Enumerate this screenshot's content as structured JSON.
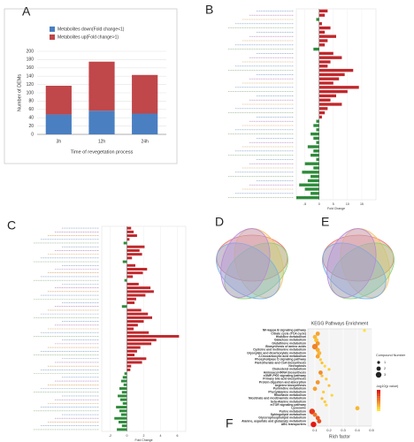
{
  "chart_data": [
    {
      "type": "stacked_bar",
      "panel": "A",
      "y_label": "Number of DEMs",
      "x_label": "Time of revegetation process",
      "categories": [
        "3h",
        "12h",
        "24h"
      ],
      "series": [
        {
          "name": "Metabolites down(Fold change<1)",
          "color": "#4a7fc1",
          "values": [
            48,
            57,
            50
          ]
        },
        {
          "name": "Metabolites up(Fold change>1)",
          "color": "#c0474a",
          "values": [
            69,
            118,
            93
          ]
        }
      ],
      "ylim": [
        0,
        200
      ],
      "yticks": [
        0,
        20,
        40,
        60,
        80,
        100,
        120,
        140,
        160,
        180,
        200
      ],
      "grid": true
    },
    {
      "type": "diverging_bar",
      "panel": "B",
      "x_label": "Fold Change",
      "color_up": "#c0282c",
      "color_down": "#2e8b3a",
      "categories": [
        null,
        null,
        null,
        null,
        null,
        null,
        null,
        null,
        null,
        null,
        null,
        null,
        null,
        null,
        null,
        null,
        null,
        null,
        null,
        null,
        null,
        null,
        null,
        null,
        null,
        null,
        null,
        null,
        null,
        null,
        null,
        null,
        null,
        null,
        null,
        null,
        null,
        null,
        null,
        null,
        null,
        null,
        null,
        null,
        null
      ],
      "values": [
        3,
        2,
        -1,
        1,
        4,
        2,
        6,
        3,
        2,
        -2,
        5,
        8,
        4,
        3,
        12,
        9,
        7,
        5,
        14,
        10,
        6,
        4,
        8,
        3,
        2,
        1,
        -1,
        -2,
        -1,
        -3,
        -2,
        -1,
        -4,
        -2,
        -3,
        -1,
        -5,
        -2,
        -6,
        -3,
        -4,
        -7,
        -5,
        -3,
        -8
      ],
      "xlim": [
        -8,
        20
      ],
      "xticks": [
        -5,
        0,
        5,
        10,
        15
      ]
    },
    {
      "type": "diverging_bar",
      "panel": "C",
      "x_label": "Fold Change",
      "color_up": "#c0282c",
      "color_down": "#2e8b3a",
      "categories": [
        null,
        null,
        null,
        null,
        null,
        null,
        null,
        null,
        null,
        null,
        null,
        null,
        null,
        null,
        null,
        null,
        null,
        null,
        null,
        null,
        null,
        null,
        null,
        null,
        null,
        null,
        null,
        null,
        null,
        null,
        null,
        null,
        null,
        null,
        null,
        null,
        null,
        null,
        null,
        null,
        null,
        null,
        null,
        null,
        null,
        null,
        null,
        null,
        null,
        null,
        null,
        null,
        null,
        null,
        null
      ],
      "values": [
        0.5,
        0.8,
        1.2,
        0.3,
        -0.4,
        2.1,
        1.5,
        1.8,
        0.6,
        -0.5,
        1.0,
        2.4,
        1.9,
        0.7,
        -0.3,
        1.4,
        2.8,
        3.2,
        2.2,
        1.1,
        0.9,
        -0.6,
        1.7,
        2.5,
        3.0,
        2.0,
        1.3,
        0.8,
        2.6,
        6.2,
        3.5,
        2.9,
        1.6,
        1.2,
        0.9,
        2.3,
        1.8,
        0.5,
        0.4,
        -0.3,
        -0.5,
        -0.7,
        -0.4,
        -0.9,
        -0.6,
        -1.1,
        -0.8,
        -0.5,
        -1.3,
        -0.9,
        -0.7,
        -1.5,
        -1.0,
        -0.6,
        -1.2
      ],
      "xlim": [
        -3,
        7
      ],
      "xticks": [
        -2,
        0,
        2,
        4,
        6
      ]
    },
    {
      "type": "bubble",
      "panel": "F",
      "title": "KEGG Pathways Enrichment",
      "x_label": "Rich factor",
      "size_legend_title": "Compound Number",
      "color_legend_title": "-log10(p value)",
      "size_legend": [
        1,
        2,
        3
      ],
      "categories": [
        "NF-kappa B signaling pathway",
        "Citrate cycle (TCA cycle)",
        "Histidine metabolism",
        "Galactose metabolism",
        "Glutathione metabolism",
        "Biosynthesis of amino acids",
        "Cysteine and methionine metabolism",
        "Glyoxylate and dicarboxylate metabolism",
        "2-Oxocarboxylic acid metabolism",
        "Phospholipase D signaling pathway",
        "Pantothenate and CoA biosynthesis",
        "Necroptosis",
        "Cholesterol metabolism",
        "Aminoacyl-tRNA biosynthesis",
        "cGMP-PKG signaling pathway",
        "Primary bile acid biosynthesis",
        "Protein digestion and absorption",
        "Arginine biosynthesis",
        "Pyrimidine metabolism",
        "Phenylalanine metabolism",
        "Riboflavin metabolism",
        "Nicotinate and nicotinamide metabolism",
        "beta-Alanine metabolism",
        "mTOR signaling pathway",
        "Lysosome",
        "Purine metabolism",
        "Sphingolipid metabolism",
        "Glycerophospholipid metabolism",
        "Alanine, aspartate and glutamate metabolism",
        "ABC transporters"
      ],
      "x": [
        0.45,
        0.12,
        0.1,
        0.11,
        0.12,
        0.1,
        0.12,
        0.13,
        0.12,
        0.14,
        0.15,
        0.17,
        0.2,
        0.14,
        0.15,
        0.18,
        0.12,
        0.2,
        0.1,
        0.16,
        0.22,
        0.15,
        0.17,
        0.18,
        0.4,
        0.08,
        0.1,
        0.12,
        0.13,
        0.09
      ],
      "sizes": [
        1,
        2,
        2,
        2,
        2,
        3,
        2,
        2,
        2,
        1,
        1,
        1,
        1,
        2,
        1,
        1,
        2,
        1,
        2,
        1,
        1,
        1,
        1,
        1,
        2,
        3,
        2,
        2,
        2,
        3
      ],
      "neglogp": [
        0.6,
        1.2,
        1.0,
        0.9,
        1.3,
        1.5,
        1.1,
        1.0,
        1.2,
        0.8,
        0.9,
        0.7,
        0.8,
        1.4,
        0.9,
        0.8,
        1.3,
        0.9,
        1.2,
        0.8,
        0.7,
        0.9,
        0.8,
        0.7,
        1.0,
        2.2,
        1.6,
        1.9,
        2.0,
        2.5
      ],
      "xlim": [
        0.05,
        0.5
      ],
      "xticks": [
        0.1,
        0.2,
        0.3,
        0.4,
        0.5
      ]
    }
  ],
  "venn": {
    "panels": [
      "D",
      "E"
    ]
  }
}
